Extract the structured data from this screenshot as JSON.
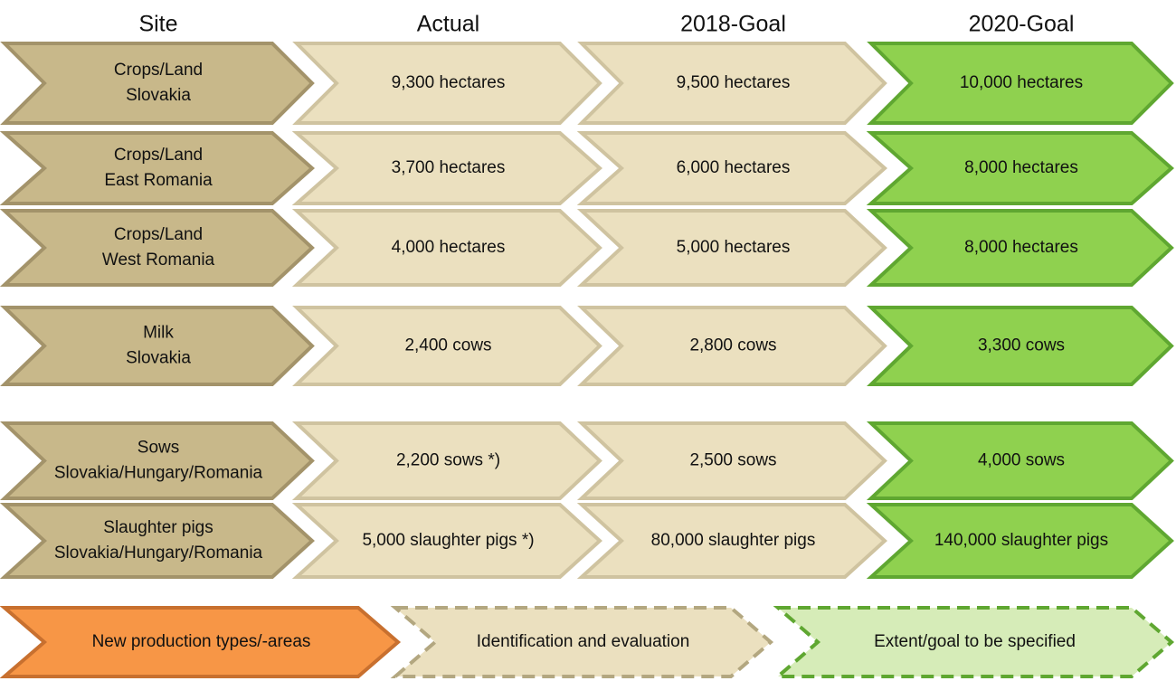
{
  "headers": [
    "Site",
    "Actual",
    "2018-Goal",
    "2020-Goal"
  ],
  "rows": [
    {
      "site": [
        "Crops/Land",
        "Slovakia"
      ],
      "actual": "9,300 hectares",
      "goal_2018": "9,500 hectares",
      "goal_2020": "10,000 hectares"
    },
    {
      "site": [
        "Crops/Land",
        "East Romania"
      ],
      "actual": "3,700 hectares",
      "goal_2018": "6,000 hectares",
      "goal_2020": "8,000 hectares"
    },
    {
      "site": [
        "Crops/Land",
        "West Romania"
      ],
      "actual": "4,000 hectares",
      "goal_2018": "5,000 hectares",
      "goal_2020": "8,000 hectares"
    },
    {
      "site": [
        "Milk",
        "Slovakia"
      ],
      "actual": "2,400 cows",
      "goal_2018": "2,800 cows",
      "goal_2020": "3,300 cows"
    },
    {
      "site": [
        "Sows",
        "Slovakia/Hungary/Romania"
      ],
      "actual": "2,200 sows *)",
      "goal_2018": "2,500 sows",
      "goal_2020": "4,000 sows"
    },
    {
      "site": [
        "Slaughter pigs",
        "Slovakia/Hungary/Romania"
      ],
      "actual": "5,000 slaughter pigs *)",
      "goal_2018": "80,000 slaughter pigs",
      "goal_2020": "140,000 slaughter pigs"
    }
  ],
  "footer": [
    "New production types/-areas",
    "Identification and evaluation",
    "Extent/goal to be specified"
  ]
}
